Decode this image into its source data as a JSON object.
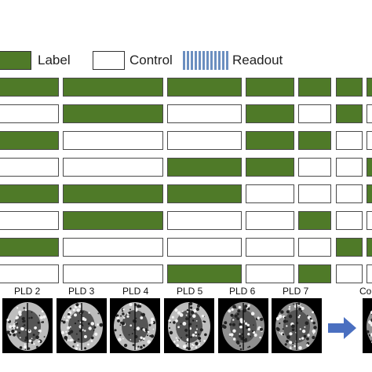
{
  "legend": [
    {
      "type": "label",
      "text": "Label"
    },
    {
      "type": "control",
      "text": "Control"
    },
    {
      "type": "readout",
      "text": "Readout"
    }
  ],
  "colors": {
    "label_fill": "#4f7a28",
    "control_fill": "#ffffff",
    "readout_stripe": "#6b8fc0",
    "arrow": "#4a6fc0"
  },
  "rows": [
    [
      "label",
      "label",
      "label",
      "label",
      "label",
      "label",
      "label"
    ],
    [
      "control",
      "label",
      "control",
      "label",
      "control",
      "label",
      "control"
    ],
    [
      "label",
      "control",
      "control",
      "label",
      "label",
      "control",
      "control"
    ],
    [
      "control",
      "control",
      "label",
      "label",
      "control",
      "control",
      "label"
    ],
    [
      "label",
      "label",
      "label",
      "control",
      "control",
      "control",
      "label"
    ],
    [
      "control",
      "label",
      "control",
      "control",
      "label",
      "control",
      "control"
    ],
    [
      "label",
      "control",
      "control",
      "control",
      "control",
      "label",
      "label"
    ],
    [
      "control",
      "control",
      "label",
      "control",
      "label",
      "control",
      "control"
    ]
  ],
  "pld_labels": [
    "PLD 2",
    "PLD 3",
    "PLD 4",
    "PLD 5",
    "PLD 6",
    "PLD 7",
    "Co"
  ]
}
